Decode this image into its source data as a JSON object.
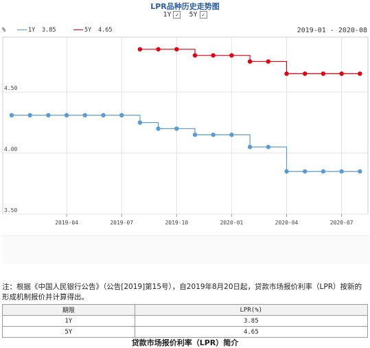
{
  "title": "LPR品种历史走势图",
  "toggles": [
    {
      "label": "1Y",
      "checked": true
    },
    {
      "label": "5Y",
      "checked": true
    }
  ],
  "legend": {
    "unit": "%",
    "series": [
      {
        "name": "1Y",
        "value": "3.85",
        "color": "#5b9bd5"
      },
      {
        "name": "5Y",
        "value": "4.65",
        "color": "#e60012"
      }
    ],
    "range": "2019-01 - 2020-08"
  },
  "chart_data": {
    "type": "line",
    "x": [
      "2019-01",
      "2019-02",
      "2019-03",
      "2019-04",
      "2019-05",
      "2019-06",
      "2019-07",
      "2019-08",
      "2019-09",
      "2019-10",
      "2019-11",
      "2019-12",
      "2020-01",
      "2020-02",
      "2020-03",
      "2020-04",
      "2020-05",
      "2020-06",
      "2020-07",
      "2020-08"
    ],
    "series": [
      {
        "name": "1Y",
        "color": "#5b9bd5",
        "values": [
          4.31,
          4.31,
          4.31,
          4.31,
          4.31,
          4.31,
          4.31,
          4.25,
          4.2,
          4.2,
          4.15,
          4.15,
          4.15,
          4.05,
          4.05,
          3.85,
          3.85,
          3.85,
          3.85,
          3.85
        ]
      },
      {
        "name": "5Y",
        "color": "#e60012",
        "values": [
          null,
          null,
          null,
          null,
          null,
          null,
          null,
          4.85,
          4.85,
          4.85,
          4.8,
          4.8,
          4.8,
          4.75,
          4.75,
          4.65,
          4.65,
          4.65,
          4.65,
          4.65
        ]
      }
    ],
    "yticks": [
      "4.50",
      "4.00",
      "3.50"
    ],
    "ytick_values": [
      4.5,
      4.0,
      3.5
    ],
    "xticks": [
      "2019-04",
      "2019-07",
      "2019-10",
      "2020-01",
      "2020-04",
      "2020-07"
    ],
    "ylim": [
      3.5,
      4.95
    ],
    "grid": true
  },
  "note": "注：根据《中国人民银行公告》（公告[2019]第15号），自2019年8月20日起，贷款市场报价利率（LPR）按新的形成机制报价并计算得出。",
  "table": {
    "headers": [
      "期限",
      "LPR(%)"
    ],
    "rows": [
      [
        "1Y",
        "3.85"
      ],
      [
        "5Y",
        "4.65"
      ]
    ]
  },
  "footer_title": "贷款市场报价利率（LPR）简介"
}
